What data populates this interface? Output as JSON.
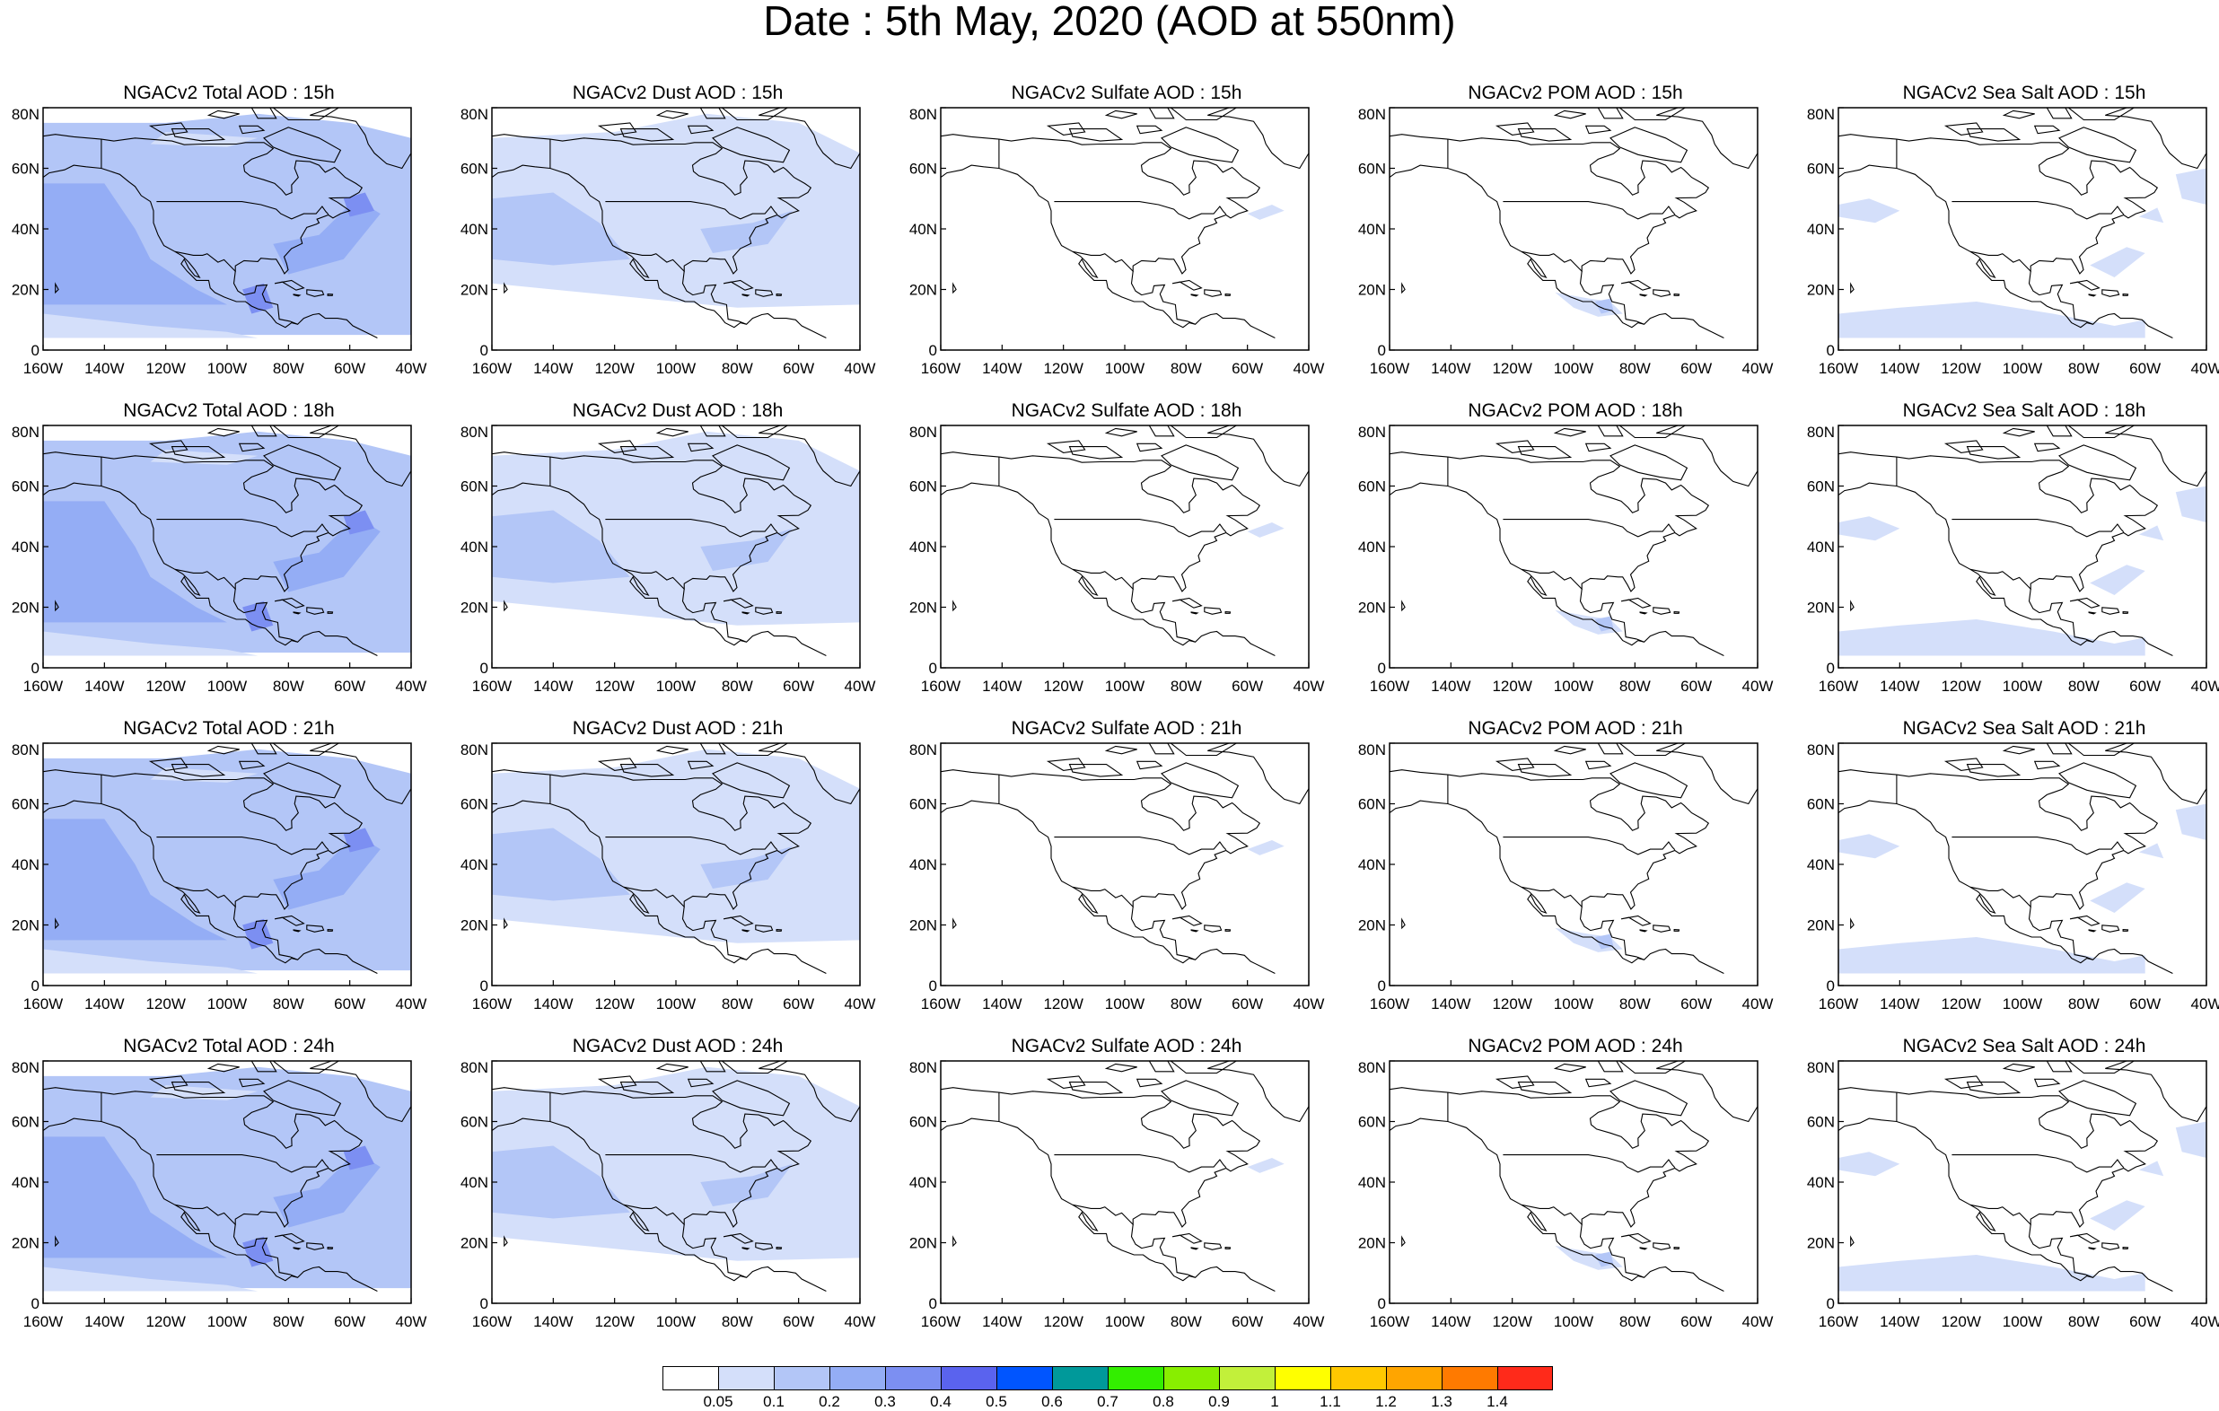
{
  "title": "Date : 5th May, 2020 (AOD at 550nm)",
  "axes": {
    "lat_ticks": [
      "80N",
      "60N",
      "40N",
      "20N",
      "0"
    ],
    "lon_ticks": [
      "160W",
      "140W",
      "120W",
      "100W",
      "80W",
      "60W",
      "40W"
    ],
    "lon_range": [
      -160,
      -40
    ],
    "lat_range": [
      0,
      80
    ]
  },
  "panels": [
    {
      "title": "NGACv2 Total AOD : 15h",
      "species": "total",
      "hour": 15,
      "level": 2
    },
    {
      "title": "NGACv2 Dust AOD : 15h",
      "species": "dust",
      "hour": 15,
      "level": 1
    },
    {
      "title": "NGACv2 Sulfate AOD : 15h",
      "species": "sulfate",
      "hour": 15,
      "level": 0
    },
    {
      "title": "NGACv2 POM AOD : 15h",
      "species": "pom",
      "hour": 15,
      "level": 0
    },
    {
      "title": "NGACv2 Sea Salt AOD : 15h",
      "species": "seasalt",
      "hour": 15,
      "level": 0
    },
    {
      "title": "NGACv2 Total AOD : 18h",
      "species": "total",
      "hour": 18,
      "level": 2
    },
    {
      "title": "NGACv2 Dust AOD : 18h",
      "species": "dust",
      "hour": 18,
      "level": 1
    },
    {
      "title": "NGACv2 Sulfate AOD : 18h",
      "species": "sulfate",
      "hour": 18,
      "level": 0
    },
    {
      "title": "NGACv2 POM AOD : 18h",
      "species": "pom",
      "hour": 18,
      "level": 0
    },
    {
      "title": "NGACv2 Sea Salt AOD : 18h",
      "species": "seasalt",
      "hour": 18,
      "level": 0
    },
    {
      "title": "NGACv2 Total AOD : 21h",
      "species": "total",
      "hour": 21,
      "level": 2
    },
    {
      "title": "NGACv2 Dust AOD : 21h",
      "species": "dust",
      "hour": 21,
      "level": 1
    },
    {
      "title": "NGACv2 Sulfate AOD : 21h",
      "species": "sulfate",
      "hour": 21,
      "level": 0
    },
    {
      "title": "NGACv2 POM AOD : 21h",
      "species": "pom",
      "hour": 21,
      "level": 0
    },
    {
      "title": "NGACv2 Sea Salt AOD : 21h",
      "species": "seasalt",
      "hour": 21,
      "level": 0
    },
    {
      "title": "NGACv2 Total AOD : 24h",
      "species": "total",
      "hour": 24,
      "level": 2
    },
    {
      "title": "NGACv2 Dust AOD : 24h",
      "species": "dust",
      "hour": 24,
      "level": 1
    },
    {
      "title": "NGACv2 Sulfate AOD : 24h",
      "species": "sulfate",
      "hour": 24,
      "level": 0
    },
    {
      "title": "NGACv2 POM AOD : 24h",
      "species": "pom",
      "hour": 24,
      "level": 0
    },
    {
      "title": "NGACv2 Sea Salt  AOD : 24h",
      "species": "seasalt",
      "hour": 24,
      "level": 0
    }
  ],
  "colorbar": {
    "colors": [
      "#ffffff",
      "#d4dffa",
      "#b3c6f7",
      "#94adf5",
      "#7c8ff2",
      "#5a63ee",
      "#0055ff",
      "#00999a",
      "#33ee00",
      "#88ee00",
      "#c2f03a",
      "#ffff00",
      "#ffc800",
      "#ffa500",
      "#ff7a00",
      "#ff2a1a"
    ],
    "labels": [
      "0.05",
      "0.1",
      "0.2",
      "0.3",
      "0.4",
      "0.5",
      "0.6",
      "0.7",
      "0.8",
      "0.9",
      "1",
      "1.1",
      "1.2",
      "1.3",
      "1.4"
    ]
  }
}
